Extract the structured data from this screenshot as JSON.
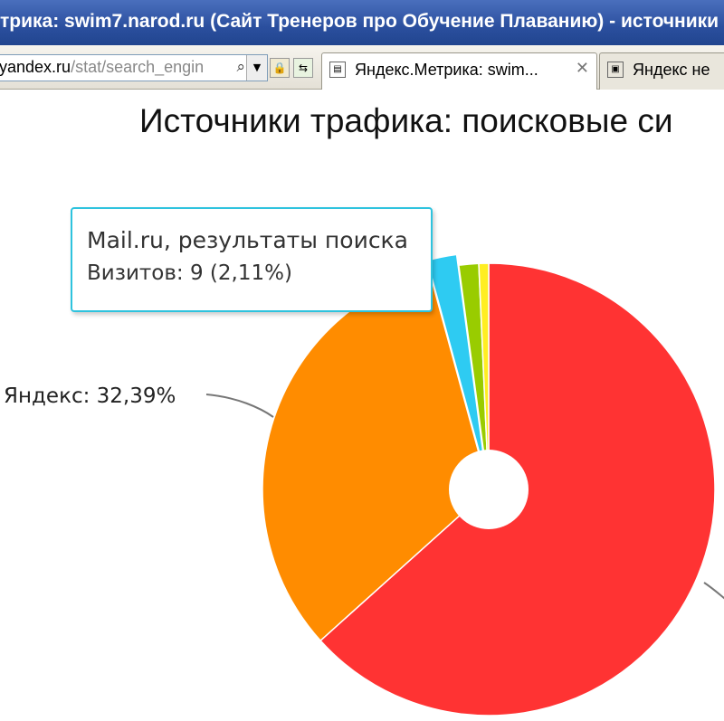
{
  "window": {
    "title": "трика: swim7.narod.ru (Сайт Тренеров про Обучение Плаванию) - источники"
  },
  "address_bar": {
    "host": "yandex.ru",
    "path": "/stat/search_engin"
  },
  "tabs": [
    {
      "label": "Яндекс.Метрика: swim...",
      "active": true
    },
    {
      "label": "Яндекс не",
      "active": false
    }
  ],
  "page": {
    "heading": "Источники трафика: поисковые си"
  },
  "tooltip": {
    "line1": "Mail.ru, результаты поиска",
    "line2": "Визитов: 9 (2,11%)"
  },
  "chart_data": {
    "type": "pie",
    "donut": true,
    "data_label": "Яндекс: 32,39%",
    "slices": [
      {
        "name": "",
        "value": 63.27,
        "color": "#ff3333"
      },
      {
        "name": "Яндекс",
        "value": 32.39,
        "color": "#ff8c00"
      },
      {
        "name": "Mail.ru, результаты поиска",
        "value": 2.11,
        "visits": 9,
        "color": "#2ecbf2",
        "highlighted": true
      },
      {
        "name": "",
        "value": 1.41,
        "color": "#99cc00"
      },
      {
        "name": "",
        "value": 0.7,
        "color": "#ffee22"
      }
    ]
  },
  "colors": {
    "titlebar": "#2b4f9e",
    "tooltip_border": "#2ec3de"
  },
  "icons": {
    "search": "magnifier-icon",
    "lock": "lock-icon",
    "refresh": "refresh-icon",
    "tab": "metrica-tab-icon",
    "close": "close-icon"
  }
}
